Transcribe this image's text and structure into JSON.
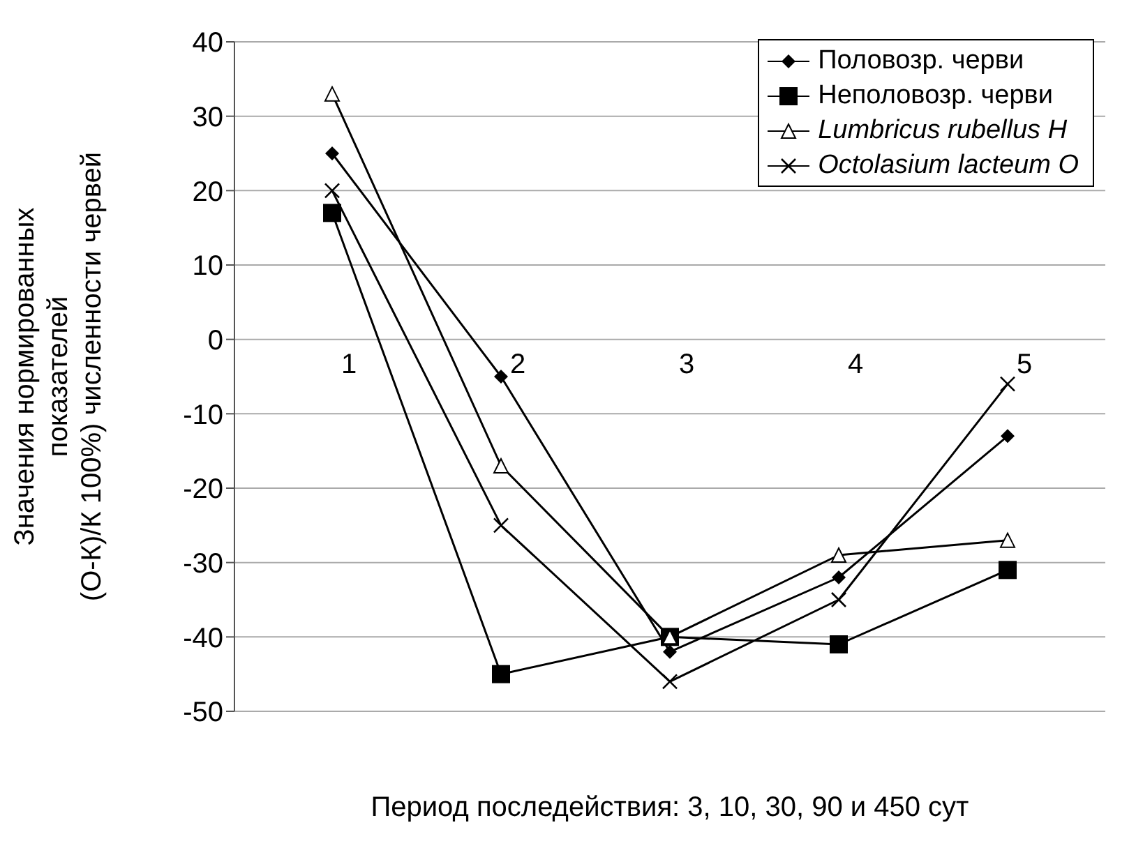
{
  "chart_data": {
    "type": "line",
    "xlabel": "Период последействия: 3, 10, 30, 90 и 450 сут",
    "ylabel": "Значения нормированных показателей (О-К)/К 100%)  численности червей",
    "categories": [
      "1",
      "2",
      "3",
      "4",
      "5"
    ],
    "series": [
      {
        "name": "Половозр. черви",
        "color": "#000000",
        "marker": "diamond",
        "values": [
          25,
          -5,
          -42,
          -32,
          -13
        ]
      },
      {
        "name": "Неполовозр. черви",
        "color": "#000000",
        "marker": "square",
        "values": [
          17,
          -45,
          -40,
          -41,
          -31
        ]
      },
      {
        "name": "Lumbricus rubellus H",
        "color": "#000000",
        "marker": "triangle",
        "values": [
          33,
          -17,
          -40,
          -29,
          -27
        ]
      },
      {
        "name": "Octolasium lacteum O",
        "color": "#000000",
        "marker": "cross",
        "values": [
          20,
          -25,
          -46,
          -35,
          -6
        ]
      }
    ],
    "ylim": [
      -50,
      40
    ],
    "yticks": [
      -50,
      -40,
      -30,
      -20,
      -10,
      0,
      10,
      20,
      30,
      40
    ],
    "grid": "y",
    "legend": "top right"
  }
}
